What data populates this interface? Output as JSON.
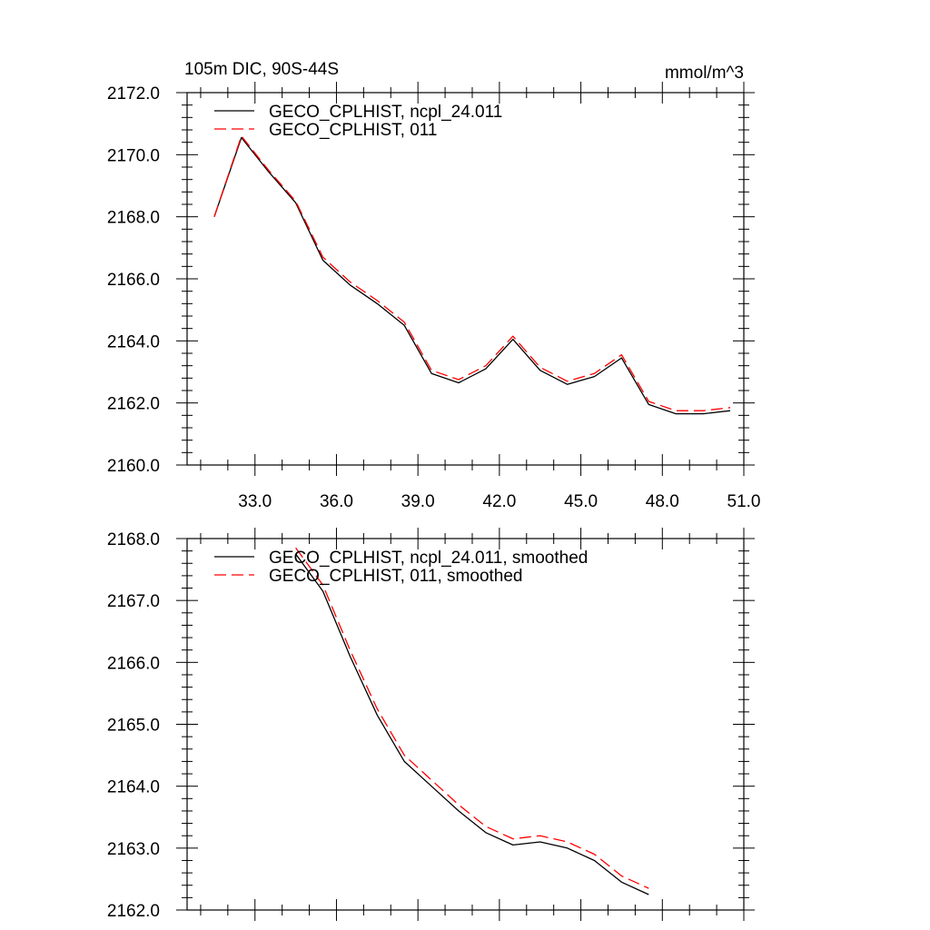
{
  "chart_data": [
    {
      "type": "line",
      "title": "105m DIC, 90S-44S",
      "units": "mmol/m^3",
      "xlim": [
        30.5,
        51.0
      ],
      "ylim": [
        2160.0,
        2172.0
      ],
      "x_ticks": [
        33.0,
        36.0,
        39.0,
        42.0,
        45.0,
        48.0,
        51.0
      ],
      "x_tick_labels": [
        "33.0",
        "36.0",
        "39.0",
        "42.0",
        "45.0",
        "48.0",
        "51.0"
      ],
      "y_ticks": [
        2160.0,
        2162.0,
        2164.0,
        2166.0,
        2168.0,
        2170.0,
        2172.0
      ],
      "y_tick_labels": [
        "2160.0",
        "2162.0",
        "2164.0",
        "2166.0",
        "2168.0",
        "2170.0",
        "2172.0"
      ],
      "x": [
        31.5,
        32.5,
        33.5,
        34.5,
        35.5,
        36.5,
        37.5,
        38.5,
        39.5,
        40.5,
        41.5,
        42.5,
        43.5,
        44.5,
        45.5,
        46.5,
        47.5,
        48.5,
        49.5,
        50.5
      ],
      "legend_position": "top-left",
      "series": [
        {
          "name": "GECO_CPLHIST, ncpl_24.011",
          "color": "#000000",
          "dash": "solid",
          "values": [
            2168.0,
            2170.55,
            2169.45,
            2168.45,
            2166.6,
            2165.8,
            2165.2,
            2164.5,
            2162.95,
            2162.65,
            2163.1,
            2164.05,
            2163.05,
            2162.6,
            2162.85,
            2163.45,
            2161.95,
            2161.65,
            2161.65,
            2161.75
          ]
        },
        {
          "name": "GECO_CPLHIST, 011",
          "color": "#ff0000",
          "dash": "dashed",
          "values": [
            2168.0,
            2170.6,
            2169.5,
            2168.5,
            2166.7,
            2165.9,
            2165.3,
            2164.6,
            2163.05,
            2162.75,
            2163.2,
            2164.15,
            2163.15,
            2162.7,
            2162.95,
            2163.55,
            2162.05,
            2161.75,
            2161.75,
            2161.85
          ]
        }
      ]
    },
    {
      "type": "line",
      "title": "",
      "xlim": [
        30.5,
        51.0
      ],
      "ylim": [
        2162.0,
        2168.0
      ],
      "x_ticks": [
        33.0,
        36.0,
        39.0,
        42.0,
        45.0,
        48.0,
        51.0
      ],
      "y_ticks": [
        2162.0,
        2163.0,
        2164.0,
        2165.0,
        2166.0,
        2167.0,
        2168.0
      ],
      "y_tick_labels": [
        "2162.0",
        "2163.0",
        "2164.0",
        "2165.0",
        "2166.0",
        "2167.0",
        "2168.0"
      ],
      "x": [
        34.5,
        35.5,
        36.5,
        37.5,
        38.5,
        39.5,
        40.5,
        41.5,
        42.5,
        43.5,
        44.5,
        45.5,
        46.5,
        47.5
      ],
      "legend_position": "top-left",
      "series": [
        {
          "name": "GECO_CPLHIST, ncpl_24.011, smoothed",
          "color": "#000000",
          "dash": "solid",
          "values": [
            2167.75,
            2167.15,
            2166.1,
            2165.15,
            2164.4,
            2164.0,
            2163.6,
            2163.25,
            2163.05,
            2163.1,
            2163.0,
            2162.8,
            2162.45,
            2162.25
          ]
        },
        {
          "name": "GECO_CPLHIST, 011, smoothed",
          "color": "#ff0000",
          "dash": "dashed",
          "values": [
            2167.85,
            2167.25,
            2166.2,
            2165.25,
            2164.5,
            2164.1,
            2163.7,
            2163.35,
            2163.15,
            2163.2,
            2163.1,
            2162.9,
            2162.55,
            2162.35
          ]
        }
      ]
    }
  ]
}
